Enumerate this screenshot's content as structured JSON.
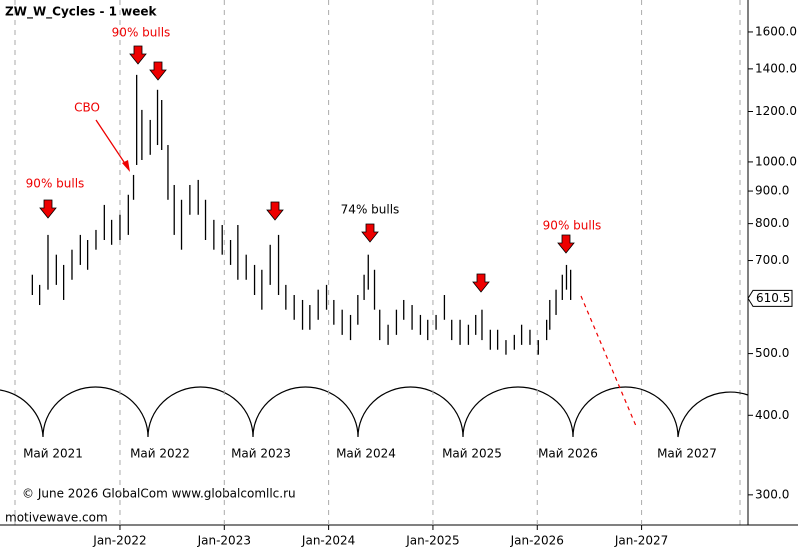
{
  "chart_data": {
    "type": "range-bar",
    "title": "ZW_W_Cycles - 1 week",
    "x": [
      2021.16,
      2021.23,
      2021.31,
      2021.39,
      2021.46,
      2021.54,
      2021.62,
      2021.69,
      2021.77,
      2021.85,
      2021.92,
      2022.0,
      2022.08,
      2022.13,
      2022.16,
      2022.21,
      2022.29,
      2022.36,
      2022.4,
      2022.46,
      2022.52,
      2022.59,
      2022.67,
      2022.75,
      2022.82,
      2022.9,
      2022.98,
      2023.06,
      2023.13,
      2023.21,
      2023.29,
      2023.36,
      2023.44,
      2023.52,
      2023.59,
      2023.67,
      2023.75,
      2023.82,
      2023.9,
      2023.98,
      2024.05,
      2024.13,
      2024.21,
      2024.28,
      2024.34,
      2024.38,
      2024.44,
      2024.49,
      2024.57,
      2024.65,
      2024.72,
      2024.8,
      2024.88,
      2024.95,
      2025.03,
      2025.11,
      2025.18,
      2025.26,
      2025.34,
      2025.41,
      2025.47,
      2025.55,
      2025.62,
      2025.7,
      2025.78,
      2025.85,
      2025.93,
      2026.01,
      2026.09,
      2026.12,
      2026.18,
      2026.24,
      2026.28,
      2026.32
    ],
    "high": [
      665,
      641,
      768,
      715,
      689,
      728,
      768,
      754,
      782,
      856,
      811,
      826,
      888,
      954,
      1370,
      1207,
      1164,
      1298,
      1251,
      1063,
      920,
      872,
      920,
      937,
      872,
      811,
      796,
      754,
      796,
      715,
      689,
      677,
      741,
      768,
      641,
      618,
      607,
      596,
      630,
      641,
      607,
      586,
      575,
      618,
      665,
      715,
      677,
      586,
      555,
      586,
      607,
      596,
      575,
      565,
      575,
      618,
      565,
      565,
      555,
      575,
      586,
      545,
      545,
      525,
      535,
      555,
      545,
      525,
      565,
      607,
      630,
      665,
      689,
      677
    ],
    "low": [
      618,
      596,
      630,
      641,
      607,
      653,
      689,
      677,
      728,
      754,
      741,
      754,
      768,
      872,
      989,
      1007,
      1026,
      1063,
      1044,
      872,
      768,
      728,
      826,
      826,
      754,
      728,
      715,
      689,
      653,
      653,
      618,
      586,
      641,
      618,
      586,
      565,
      545,
      545,
      565,
      586,
      555,
      535,
      525,
      555,
      607,
      630,
      586,
      525,
      516,
      535,
      565,
      545,
      535,
      525,
      545,
      565,
      525,
      516,
      516,
      535,
      525,
      507,
      507,
      498,
      507,
      516,
      516,
      498,
      525,
      545,
      575,
      607,
      630,
      607
    ],
    "color": "#000000",
    "last_price": 610.5,
    "log_scale": true,
    "xlim": [
      2020.85,
      2028.02
    ],
    "xticks": [
      {
        "value": 2022,
        "label": "Jan-2022"
      },
      {
        "value": 2023,
        "label": "Jan-2023"
      },
      {
        "value": 2024,
        "label": "Jan-2024"
      },
      {
        "value": 2025,
        "label": "Jan-2025"
      },
      {
        "value": 2026,
        "label": "Jan-2026"
      },
      {
        "value": 2027,
        "label": "Jan-2027"
      }
    ],
    "ylim": [
      269,
      1796
    ],
    "yticks": [
      {
        "value": 300,
        "label": "300.0"
      },
      {
        "value": 400,
        "label": "400.0"
      },
      {
        "value": 500,
        "label": "500.0"
      },
      {
        "value": 700,
        "label": "700.0"
      },
      {
        "value": 800,
        "label": "800.0"
      },
      {
        "value": 900,
        "label": "900.0"
      },
      {
        "value": 1000,
        "label": "1000.0"
      },
      {
        "value": 1200,
        "label": "1200.0"
      },
      {
        "value": 1400,
        "label": "1400.0"
      },
      {
        "value": 1600,
        "label": "1600.0"
      }
    ],
    "annotations": [
      "90% bulls",
      "90% bulls",
      "CBO",
      "74% bulls",
      "90% bulls"
    ],
    "cycle_labels": [
      "Май 2021",
      "Май 2022",
      "Май 2023",
      "Май 2024",
      "Май 2025",
      "Май 2026",
      "Май 2027"
    ],
    "copyright": "© June 2026 GlobalCom www.globalcomllc.ru",
    "source": "motivewave.com"
  }
}
